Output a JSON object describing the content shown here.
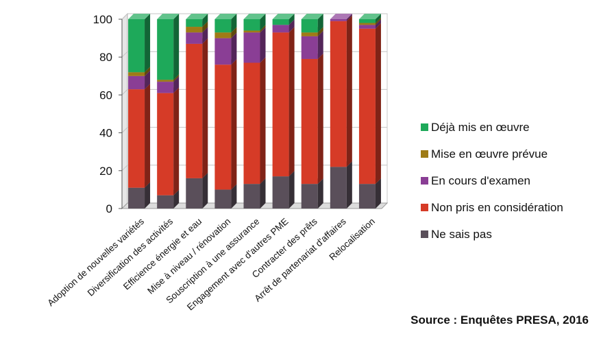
{
  "chart_data": {
    "type": "bar",
    "stacked": true,
    "three_d": true,
    "categories": [
      "Adoption de nouvelles variétés",
      "Diversification des activités",
      "Efficience énergie et eau",
      "Mise à niveau / rénovation",
      "Souscription à une assurance",
      "Engagement avec d'autres PME",
      "Contracter des prêts",
      "Arrêt de partenariat d'affaires",
      "Relocalisation"
    ],
    "series": [
      {
        "name": "Ne sais pas",
        "color": "#5a4f5a",
        "values": [
          11,
          7,
          16,
          10,
          13,
          17,
          13,
          22,
          13
        ]
      },
      {
        "name": "Non pris en considération",
        "color": "#d63b27",
        "values": [
          52,
          54,
          71,
          66,
          64,
          76,
          66,
          77,
          82
        ]
      },
      {
        "name": "En cours d'examen",
        "color": "#8a3e95",
        "values": [
          7,
          6,
          6,
          14,
          16,
          4,
          12,
          1,
          2
        ]
      },
      {
        "name": "Mise en œuvre prévue",
        "color": "#9e7b16",
        "values": [
          2,
          1,
          3,
          3,
          1,
          0,
          2,
          0,
          1
        ]
      },
      {
        "name": "Déjà mis en œuvre",
        "color": "#1ea95a",
        "values": [
          28,
          32,
          4,
          7,
          6,
          3,
          7,
          0,
          2
        ]
      }
    ],
    "yticks": [
      0,
      20,
      40,
      60,
      80,
      100
    ],
    "ylim": [
      0,
      100
    ],
    "legend_position": "right",
    "legend_order": [
      "Déjà mis en œuvre",
      "Mise en œuvre prévue",
      "En cours d'examen",
      "Non pris en considération",
      "Ne sais pas"
    ],
    "grid": true
  },
  "source": "Source : Enquêtes PRESA, 2016"
}
